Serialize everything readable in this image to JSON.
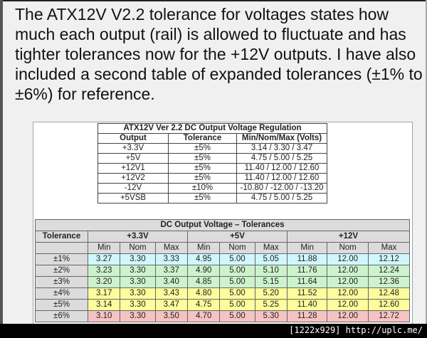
{
  "intro_text": "The ATX12V V2.2 tolerance for voltages states how much each output (rail) is allowed to fluctuate and has tighter tolerances now for the +12V outputs.  I have also included a second table of expanded tolerances (±1% to ±6%) for reference.",
  "regulation_table": {
    "title": "ATX12V Ver 2.2 DC Output Voltage Regulation",
    "headers": [
      "Output",
      "Tolerance",
      "Min/Nom/Max (Volts)"
    ],
    "rows": [
      [
        "+3.3V",
        "±5%",
        "3.14 / 3.30 / 3.47"
      ],
      [
        "+5V",
        "±5%",
        "4.75 / 5.00 / 5.25"
      ],
      [
        "+12V1",
        "±5%",
        "11.40 / 12.00 / 12.60"
      ],
      [
        "+12V2",
        "±5%",
        "11.40 / 12.00 / 12.60"
      ],
      [
        "-12V",
        "±10%",
        "-10.80 / -12.00 / -13.20"
      ],
      [
        "+5VSB",
        "±5%",
        "4.75 / 5.00 / 5.25"
      ]
    ]
  },
  "tolerance_table": {
    "title": "DC Output Voltage – Tolerances",
    "tolerance_header": "Tolerance",
    "groups": [
      "+3.3V",
      "+5V",
      "+12V"
    ],
    "subheaders": [
      "Min",
      "Nom",
      "Max",
      "Min",
      "Nom",
      "Max",
      "Min",
      "Nom",
      "Max"
    ],
    "row_colors": [
      "#cff7fd",
      "#cdf3cd",
      "#cdf3cd",
      "#fdfd9d",
      "#fdfd9d",
      "#f6c3c3"
    ],
    "rows": [
      {
        "tol": "±1%",
        "values": [
          "3.27",
          "3.30",
          "3.33",
          "4.95",
          "5.00",
          "5.05",
          "11.88",
          "12.00",
          "12.12"
        ]
      },
      {
        "tol": "±2%",
        "values": [
          "3.23",
          "3.30",
          "3.37",
          "4.90",
          "5.00",
          "5.10",
          "11.76",
          "12.00",
          "12.24"
        ]
      },
      {
        "tol": "±3%",
        "values": [
          "3.20",
          "3.30",
          "3.40",
          "4.85",
          "5.00",
          "5.15",
          "11.64",
          "12.00",
          "12.36"
        ]
      },
      {
        "tol": "±4%",
        "values": [
          "3.17",
          "3.30",
          "3.43",
          "4.80",
          "5.00",
          "5.20",
          "11.52",
          "12.00",
          "12.48"
        ]
      },
      {
        "tol": "±5%",
        "values": [
          "3.14",
          "3.30",
          "3.47",
          "4.75",
          "5.00",
          "5.25",
          "11.40",
          "12.00",
          "12.60"
        ]
      },
      {
        "tol": "±6%",
        "values": [
          "3.10",
          "3.30",
          "3.50",
          "4.70",
          "5.00",
          "5.30",
          "11.28",
          "12.00",
          "12.72"
        ]
      }
    ]
  },
  "watermark": "[1222x929] http://uplc.me/"
}
